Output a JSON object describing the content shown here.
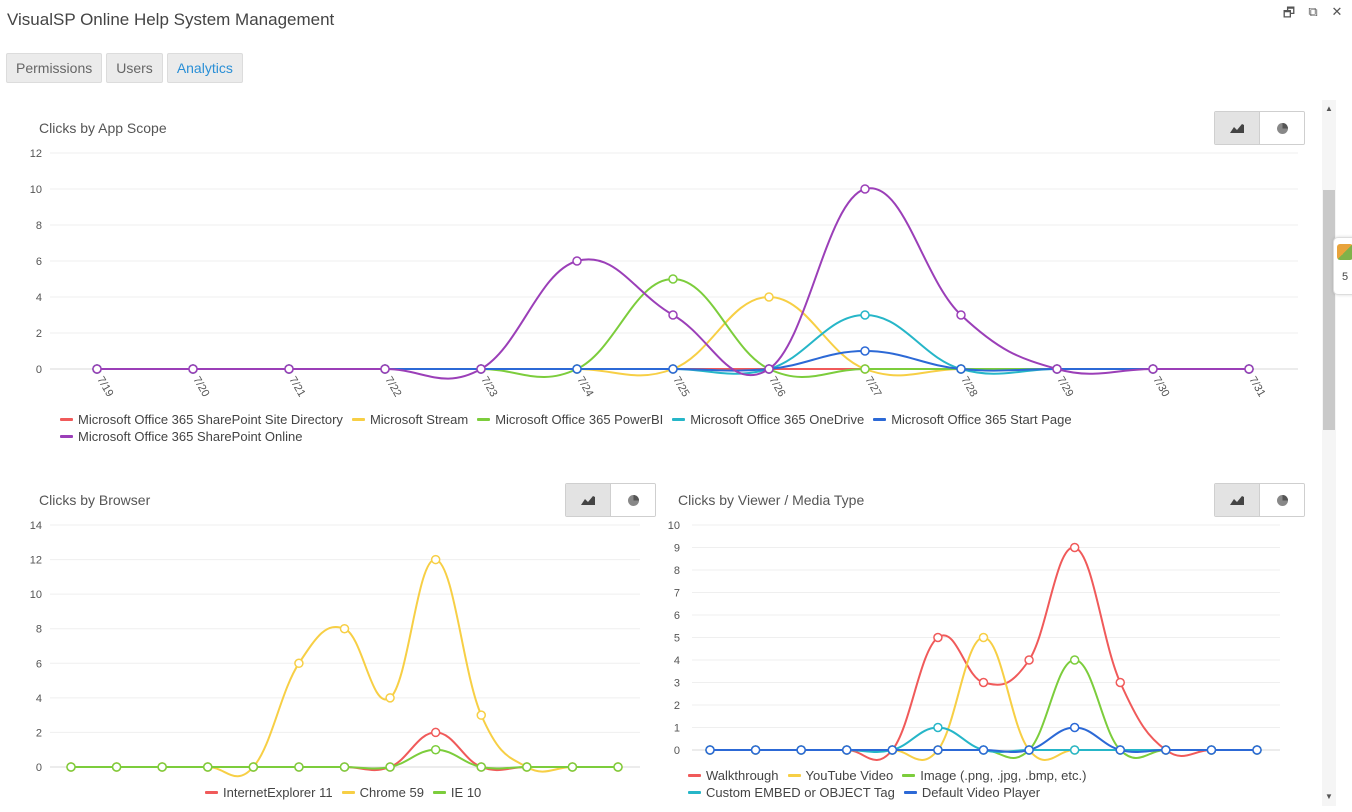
{
  "app": {
    "title": "VisualSP Online Help System Management"
  },
  "window_controls": [
    {
      "name": "restore-icon",
      "glyph": "🗗"
    },
    {
      "name": "popout-icon",
      "glyph": "⧉"
    },
    {
      "name": "close-icon",
      "glyph": "✕"
    }
  ],
  "tabs": [
    {
      "label": "Permissions",
      "active": false
    },
    {
      "label": "Users",
      "active": false
    },
    {
      "label": "Analytics",
      "active": true
    }
  ],
  "side_widget": {
    "count": "5"
  },
  "charts": {
    "app_scope": {
      "title": "Clicks by App Scope"
    },
    "browser": {
      "title": "Clicks by Browser"
    },
    "viewer": {
      "title": "Clicks by Viewer / Media Type"
    }
  },
  "chart_data": [
    {
      "type": "line",
      "title": "Clicks by App Scope",
      "categories": [
        "7/19",
        "7/20",
        "7/21",
        "7/22",
        "7/23",
        "7/24",
        "7/25",
        "7/26",
        "7/27",
        "7/28",
        "7/29",
        "7/30",
        "7/31"
      ],
      "ylim": [
        0,
        12
      ],
      "yticks": [
        0,
        2,
        4,
        6,
        8,
        10,
        12
      ],
      "legend": "bottom",
      "series": [
        {
          "name": "Microsoft Office 365 SharePoint Site Directory",
          "color": "#f05a5a",
          "values": [
            0,
            0,
            0,
            0,
            0,
            0,
            0,
            0,
            0,
            0,
            0,
            0,
            0
          ]
        },
        {
          "name": "Microsoft Stream",
          "color": "#f7cf45",
          "values": [
            0,
            0,
            0,
            0,
            0,
            0,
            0,
            4,
            0,
            0,
            0,
            0,
            0
          ]
        },
        {
          "name": "Microsoft Office 365 PowerBI",
          "color": "#7ccd3c",
          "values": [
            0,
            0,
            0,
            0,
            0,
            0,
            5,
            0,
            0,
            0,
            0,
            0,
            0
          ]
        },
        {
          "name": "Microsoft Office 365 OneDrive",
          "color": "#26b6c8",
          "values": [
            0,
            0,
            0,
            0,
            0,
            0,
            0,
            0,
            3,
            0,
            0,
            0,
            0
          ]
        },
        {
          "name": "Microsoft Office 365 Start Page",
          "color": "#2c69d6",
          "values": [
            0,
            0,
            0,
            0,
            0,
            0,
            0,
            0,
            1,
            0,
            0,
            0,
            0
          ]
        },
        {
          "name": "Microsoft Office 365 SharePoint Online",
          "color": "#9b3fb8",
          "values": [
            0,
            0,
            0,
            0,
            0,
            6,
            3,
            0,
            10,
            3,
            0,
            0,
            0
          ]
        }
      ]
    },
    {
      "type": "line",
      "title": "Clicks by Browser",
      "ylim": [
        0,
        14
      ],
      "yticks": [
        0,
        2,
        4,
        6,
        8,
        10,
        12,
        14
      ],
      "legend": "bottom",
      "series": [
        {
          "name": "InternetExplorer 11",
          "color": "#f05a5a",
          "values": [
            0,
            0,
            0,
            0,
            0,
            0,
            0,
            0,
            2,
            0,
            0,
            0,
            0
          ]
        },
        {
          "name": "Chrome 59",
          "color": "#f7cf45",
          "values": [
            0,
            0,
            0,
            0,
            0,
            6,
            8,
            4,
            12,
            3,
            0,
            0,
            0
          ]
        },
        {
          "name": "IE 10",
          "color": "#7ccd3c",
          "values": [
            0,
            0,
            0,
            0,
            0,
            0,
            0,
            0,
            1,
            0,
            0,
            0,
            0
          ]
        }
      ]
    },
    {
      "type": "line",
      "title": "Clicks by Viewer / Media Type",
      "ylim": [
        0,
        10
      ],
      "yticks": [
        0,
        1,
        2,
        3,
        4,
        5,
        6,
        7,
        8,
        9,
        10
      ],
      "legend": "bottom",
      "series": [
        {
          "name": "Walkthrough",
          "color": "#f05a5a",
          "values": [
            0,
            0,
            0,
            0,
            0,
            5,
            3,
            4,
            9,
            3,
            0,
            0,
            0
          ]
        },
        {
          "name": "YouTube Video",
          "color": "#f7cf45",
          "values": [
            0,
            0,
            0,
            0,
            0,
            0,
            5,
            0,
            0,
            0,
            0,
            0,
            0
          ]
        },
        {
          "name": "Image (.png, .jpg, .bmp, etc.)",
          "color": "#7ccd3c",
          "values": [
            0,
            0,
            0,
            0,
            0,
            0,
            0,
            0,
            4,
            0,
            0,
            0,
            0
          ]
        },
        {
          "name": "Custom EMBED or OBJECT Tag",
          "color": "#26b6c8",
          "values": [
            0,
            0,
            0,
            0,
            0,
            1,
            0,
            0,
            0,
            0,
            0,
            0,
            0
          ]
        },
        {
          "name": "Default Video Player",
          "color": "#2c69d6",
          "values": [
            0,
            0,
            0,
            0,
            0,
            0,
            0,
            0,
            1,
            0,
            0,
            0,
            0
          ]
        }
      ]
    }
  ]
}
